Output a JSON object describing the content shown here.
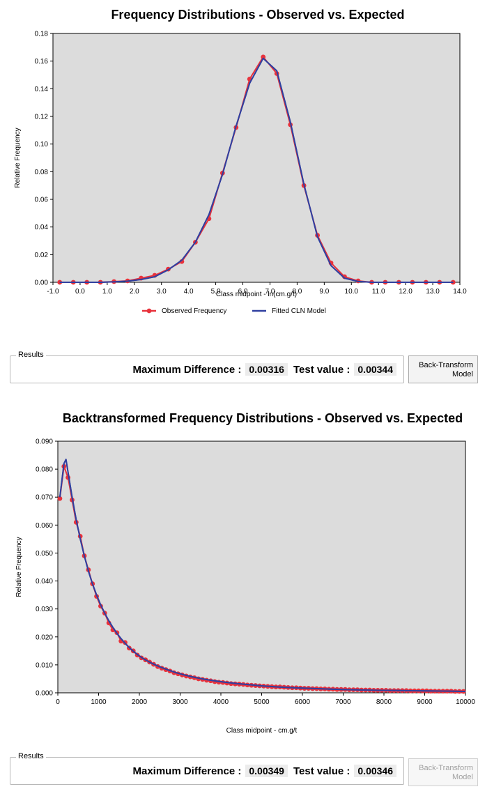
{
  "chart_data": [
    {
      "type": "line",
      "title": "Frequency Distributions - Observed vs. Expected",
      "xlabel": "Class midpoint - ln(cm.g/t)",
      "ylabel": "Relative Frequency",
      "xlim": [
        -1.0,
        14.0
      ],
      "ylim": [
        0,
        0.18
      ],
      "xticks": [
        "-1.0",
        "0.0",
        "1.0",
        "2.0",
        "3.0",
        "4.0",
        "5.0",
        "6.0",
        "7.0",
        "8.0",
        "9.0",
        "10.0",
        "11.0",
        "12.0",
        "13.0",
        "14.0"
      ],
      "yticks": [
        "0.00",
        "0.02",
        "0.04",
        "0.06",
        "0.08",
        "0.10",
        "0.12",
        "0.14",
        "0.16",
        "0.18"
      ],
      "grid": false,
      "legend": "bottom",
      "series": [
        {
          "name": "Observed Frequency",
          "color": "#e8323c",
          "marker": "circle",
          "x": [
            -0.75,
            -0.25,
            0.25,
            0.75,
            1.25,
            1.75,
            2.25,
            2.75,
            3.25,
            3.75,
            4.25,
            4.75,
            5.25,
            5.75,
            6.25,
            6.75,
            7.25,
            7.75,
            8.25,
            8.75,
            9.25,
            9.75,
            10.25,
            10.75,
            11.25,
            11.75,
            12.25,
            12.75,
            13.25,
            13.75
          ],
          "values": [
            0,
            0,
            0,
            0,
            0.0005,
            0.001,
            0.003,
            0.005,
            0.0095,
            0.015,
            0.029,
            0.046,
            0.079,
            0.112,
            0.147,
            0.163,
            0.151,
            0.114,
            0.07,
            0.034,
            0.014,
            0.004,
            0.001,
            0,
            0,
            0,
            0,
            0,
            0,
            0
          ]
        },
        {
          "name": "Fitted CLN Model",
          "color": "#3040a0",
          "marker": "none",
          "x": [
            -0.75,
            -0.25,
            0.25,
            0.75,
            1.25,
            1.75,
            2.25,
            2.75,
            3.25,
            3.75,
            4.25,
            4.75,
            5.25,
            5.75,
            6.25,
            6.75,
            7.25,
            7.75,
            8.25,
            8.75,
            9.25,
            9.75,
            10.25,
            10.75,
            11.25,
            11.75,
            12.25,
            12.75,
            13.25,
            13.75
          ],
          "values": [
            0,
            0,
            0,
            0,
            0.0003,
            0.0008,
            0.002,
            0.004,
            0.009,
            0.016,
            0.029,
            0.049,
            0.078,
            0.113,
            0.144,
            0.162,
            0.153,
            0.116,
            0.071,
            0.033,
            0.012,
            0.003,
            0.0006,
            0,
            0,
            0,
            0,
            0,
            0,
            0
          ]
        }
      ]
    },
    {
      "type": "line",
      "title": "Backtransformed Frequency Distributions - Observed vs. Expected",
      "xlabel": "Class midpoint - cm.g/t",
      "ylabel": "Relative Frequency",
      "xlim": [
        0,
        10000
      ],
      "ylim": [
        0,
        0.09
      ],
      "xticks": [
        "0",
        "1000",
        "2000",
        "3000",
        "4000",
        "5000",
        "6000",
        "7000",
        "8000",
        "9000",
        "10000"
      ],
      "yticks": [
        "0.000",
        "0.010",
        "0.020",
        "0.030",
        "0.040",
        "0.050",
        "0.060",
        "0.070",
        "0.080",
        "0.090"
      ],
      "grid": false,
      "series": [
        {
          "name": "Observed Frequency",
          "color": "#e8323c",
          "marker": "circle",
          "x": [
            50,
            150,
            250,
            350,
            450,
            550,
            650,
            750,
            850,
            950,
            1050,
            1150,
            1250,
            1350,
            1450,
            1550,
            1650,
            1750,
            1850,
            1950,
            2050,
            2150,
            2250,
            2350,
            2450,
            2550,
            2650,
            2750,
            2850,
            2950,
            3050,
            3150,
            3250,
            3350,
            3450,
            3550,
            3650,
            3750,
            3850,
            3950,
            4050,
            4150,
            4250,
            4350,
            4450,
            4550,
            4650,
            4750,
            4850,
            4950,
            5050,
            5150,
            5250,
            5350,
            5450,
            5550,
            5650,
            5750,
            5850,
            5950,
            6050,
            6150,
            6250,
            6350,
            6450,
            6550,
            6650,
            6750,
            6850,
            6950,
            7050,
            7150,
            7250,
            7350,
            7450,
            7550,
            7650,
            7750,
            7850,
            7950,
            8050,
            8150,
            8250,
            8350,
            8450,
            8550,
            8650,
            8750,
            8850,
            8950,
            9050,
            9150,
            9250,
            9350,
            9450,
            9550,
            9650,
            9750,
            9850,
            9950
          ],
          "values": [
            0.0695,
            0.081,
            0.077,
            0.069,
            0.061,
            0.056,
            0.049,
            0.044,
            0.039,
            0.0345,
            0.031,
            0.0285,
            0.025,
            0.0225,
            0.0215,
            0.0185,
            0.018,
            0.016,
            0.015,
            0.0135,
            0.0125,
            0.0118,
            0.011,
            0.0102,
            0.0094,
            0.0088,
            0.0083,
            0.0078,
            0.0072,
            0.0068,
            0.0064,
            0.006,
            0.0057,
            0.0054,
            0.005,
            0.0048,
            0.0045,
            0.0043,
            0.004,
            0.0038,
            0.0037,
            0.0035,
            0.0033,
            0.0032,
            0.0031,
            0.003,
            0.0028,
            0.0027,
            0.0026,
            0.0025,
            0.0024,
            0.0023,
            0.0022,
            0.0021,
            0.0021,
            0.002,
            0.0019,
            0.0018,
            0.0018,
            0.0017,
            0.0016,
            0.0016,
            0.0015,
            0.0015,
            0.0014,
            0.0014,
            0.0013,
            0.0013,
            0.0012,
            0.0012,
            0.0012,
            0.0011,
            0.0011,
            0.0011,
            0.001,
            0.001,
            0.001,
            0.0009,
            0.0009,
            0.0009,
            0.0009,
            0.0008,
            0.0008,
            0.0008,
            0.0008,
            0.0008,
            0.0007,
            0.0007,
            0.0007,
            0.0007,
            0.0007,
            0.0006,
            0.0006,
            0.0006,
            0.0006,
            0.0006,
            0.0006,
            0.0005,
            0.0005,
            0.0005
          ]
        },
        {
          "name": "Fitted CLN Model",
          "color": "#3040a0",
          "marker": "none",
          "x": [
            50,
            150,
            200,
            250,
            350,
            450,
            550,
            650,
            750,
            850,
            950,
            1050,
            1150,
            1250,
            1350,
            1450,
            1550,
            1650,
            1750,
            1850,
            1950,
            2100,
            2300,
            2500,
            2700,
            2900,
            3100,
            3300,
            3500,
            3700,
            3900,
            4100,
            4400,
            4700,
            5000,
            5400,
            5800,
            6200,
            6700,
            7200,
            7800,
            8400,
            9000,
            9600,
            10000
          ],
          "values": [
            0.07,
            0.082,
            0.0835,
            0.079,
            0.07,
            0.062,
            0.055,
            0.049,
            0.0435,
            0.039,
            0.035,
            0.0315,
            0.0285,
            0.0258,
            0.0234,
            0.0213,
            0.0194,
            0.0177,
            0.0162,
            0.0149,
            0.0137,
            0.0122,
            0.0106,
            0.0093,
            0.0082,
            0.0072,
            0.0064,
            0.0057,
            0.0051,
            0.0046,
            0.0042,
            0.0038,
            0.0033,
            0.0029,
            0.0025,
            0.0021,
            0.0018,
            0.0016,
            0.0013,
            0.0011,
            0.0009,
            0.0008,
            0.0007,
            0.0006,
            0.0005
          ]
        }
      ]
    }
  ],
  "results": [
    {
      "title": "Results",
      "max_diff_label": "Maximum Difference :",
      "max_diff_value": "0.00316",
      "test_label": "Test value :",
      "test_value": "0.00344",
      "button_line1": "Back-Transform",
      "button_line2": "Model",
      "button_enabled": true
    },
    {
      "title": "Results",
      "max_diff_label": "Maximum Difference :",
      "max_diff_value": "0.00349",
      "test_label": "Test value :",
      "test_value": "0.00346",
      "button_line1": "Back-Transform",
      "button_line2": "Model",
      "button_enabled": false
    }
  ]
}
